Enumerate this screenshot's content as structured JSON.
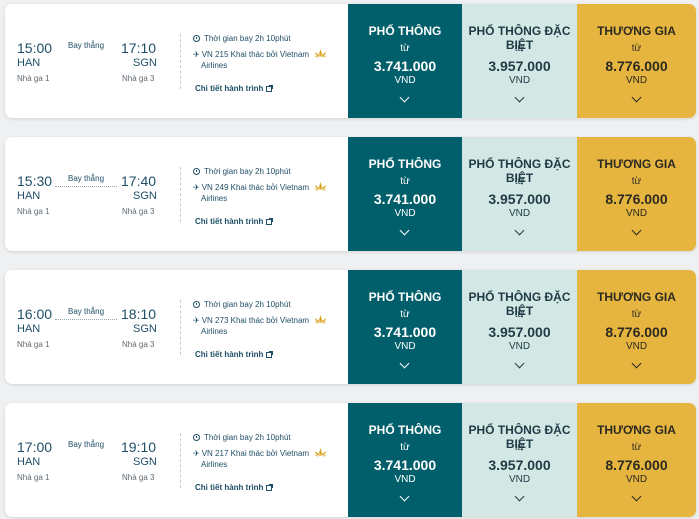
{
  "flights": [
    {
      "dep_time": "15:00",
      "arr_time": "17:10",
      "dep_airport": "HAN",
      "arr_airport": "SGN",
      "dep_terminal": "Nhà ga 1",
      "arr_terminal": "Nhà ga 3",
      "stop_label": "Bay thẳng",
      "duration": "Thời gian bay 2h 10phút",
      "flight_info": "VN 215 Khai thác bởi Vietnam",
      "airline_cont": "Airlines",
      "details_link": "Chi tiết hành trình",
      "fares": [
        {
          "class": "PHỔ THÔNG",
          "from": "từ",
          "price": "3.741.000",
          "currency": "VND"
        },
        {
          "class": "PHỔ THÔNG ĐẶC BIỆT",
          "from": "từ",
          "price": "3.957.000",
          "currency": "VND"
        },
        {
          "class": "THƯƠNG GIA",
          "from": "từ",
          "price": "8.776.000",
          "currency": "VND"
        }
      ]
    },
    {
      "dep_time": "15:30",
      "arr_time": "17:40",
      "dep_airport": "HAN",
      "arr_airport": "SGN",
      "dep_terminal": "Nhà ga 1",
      "arr_terminal": "Nhà ga 3",
      "stop_label": "Bay thẳng",
      "duration": "Thời gian bay 2h 10phút",
      "flight_info": "VN 249 Khai thác bởi Vietnam",
      "airline_cont": "Airlines",
      "details_link": "Chi tiết hành trình",
      "fares": [
        {
          "class": "PHỔ THÔNG",
          "from": "từ",
          "price": "3.741.000",
          "currency": "VND"
        },
        {
          "class": "PHỔ THÔNG ĐẶC BIỆT",
          "from": "từ",
          "price": "3.957.000",
          "currency": "VND"
        },
        {
          "class": "THƯƠNG GIA",
          "from": "từ",
          "price": "8.776.000",
          "currency": "VND"
        }
      ]
    },
    {
      "dep_time": "16:00",
      "arr_time": "18:10",
      "dep_airport": "HAN",
      "arr_airport": "SGN",
      "dep_terminal": "Nhà ga 1",
      "arr_terminal": "Nhà ga 3",
      "stop_label": "Bay thẳng",
      "duration": "Thời gian bay 2h 10phút",
      "flight_info": "VN 273 Khai thác bởi Vietnam",
      "airline_cont": "Airlines",
      "details_link": "Chi tiết hành trình",
      "fares": [
        {
          "class": "PHỔ THÔNG",
          "from": "từ",
          "price": "3.741.000",
          "currency": "VND"
        },
        {
          "class": "PHỔ THÔNG ĐẶC BIỆT",
          "from": "từ",
          "price": "3.957.000",
          "currency": "VND"
        },
        {
          "class": "THƯƠNG GIA",
          "from": "từ",
          "price": "8.776.000",
          "currency": "VND"
        }
      ]
    },
    {
      "dep_time": "17:00",
      "arr_time": "19:10",
      "dep_airport": "HAN",
      "arr_airport": "SGN",
      "dep_terminal": "Nhà ga 1",
      "arr_terminal": "Nhà ga 3",
      "stop_label": "Bay thẳng",
      "duration": "Thời gian bay 2h 10phút",
      "flight_info": "VN 217 Khai thác bởi Vietnam",
      "airline_cont": "Airlines",
      "details_link": "Chi tiết hành trình",
      "fares": [
        {
          "class": "PHỔ THÔNG",
          "from": "từ",
          "price": "3.741.000",
          "currency": "VND"
        },
        {
          "class": "PHỔ THÔNG ĐẶC BIỆT",
          "from": "từ",
          "price": "3.957.000",
          "currency": "VND"
        },
        {
          "class": "THƯƠNG GIA",
          "from": "từ",
          "price": "8.776.000",
          "currency": "VND"
        }
      ]
    }
  ],
  "colors": {
    "economy_bg": "#005f6a",
    "premium_bg": "#d3e8e4",
    "business_bg": "#e6b53f",
    "text_primary": "#1f4e66",
    "lotus": "#d9a520"
  },
  "icons": {
    "duration": "clock-icon",
    "flight": "plane-icon",
    "airline": "lotus-icon",
    "details": "external-link-icon",
    "fare_expand": "chevron-down-icon"
  }
}
